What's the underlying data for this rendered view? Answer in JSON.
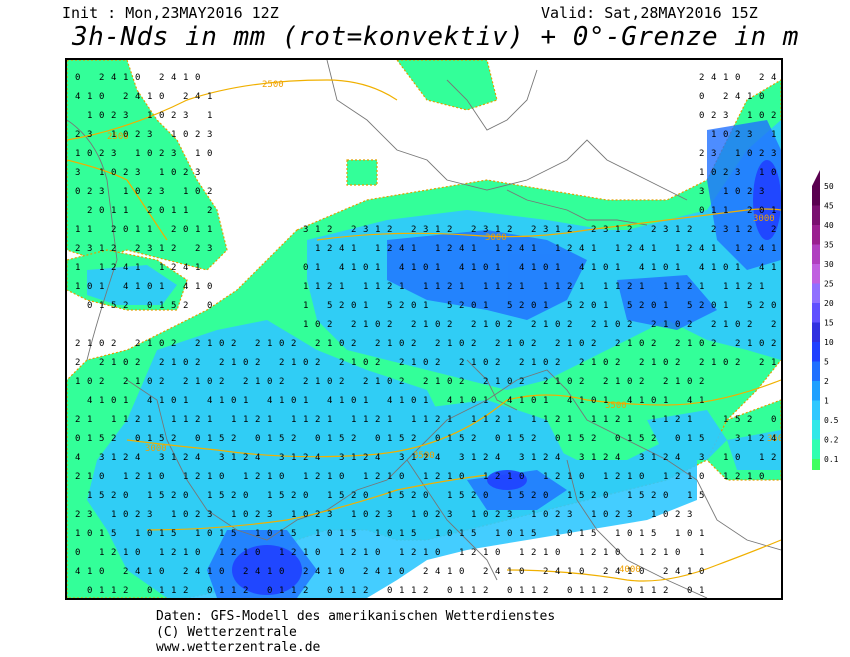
{
  "header": {
    "init": "Init : Mon,23MAY2016 12Z",
    "valid": "Valid: Sat,28MAY2016 15Z",
    "title": "3h-Nds in mm (rot=konvektiv) + 0°-Grenze in m"
  },
  "legend": {
    "levels": [
      {
        "label": "50",
        "color": "#5a0050"
      },
      {
        "label": "45",
        "color": "#7a1070"
      },
      {
        "label": "40",
        "color": "#9a2090"
      },
      {
        "label": "35",
        "color": "#b040c0"
      },
      {
        "label": "30",
        "color": "#c060e0"
      },
      {
        "label": "25",
        "color": "#9070ff"
      },
      {
        "label": "20",
        "color": "#6050ff"
      },
      {
        "label": "15",
        "color": "#3030e0"
      },
      {
        "label": "10",
        "color": "#2040ff"
      },
      {
        "label": "5",
        "color": "#2070ff"
      },
      {
        "label": "2",
        "color": "#20a0ff"
      },
      {
        "label": "1",
        "color": "#30c8ff"
      },
      {
        "label": "0.5",
        "color": "#30e8e8"
      },
      {
        "label": "0.2",
        "color": "#30ffb0"
      },
      {
        "label": "0.1",
        "color": "#40ff60"
      }
    ]
  },
  "isotherms": [
    "2500",
    "2500",
    "3000",
    "3000",
    "3500",
    "3500",
    "3500",
    "3000",
    "4000"
  ],
  "footer": {
    "line1": "Daten: GFS-Modell des amerikanischen Wetterdienstes",
    "line2": "(C) Wetterzentrale",
    "line3": "www.wetterzentrale.de"
  }
}
